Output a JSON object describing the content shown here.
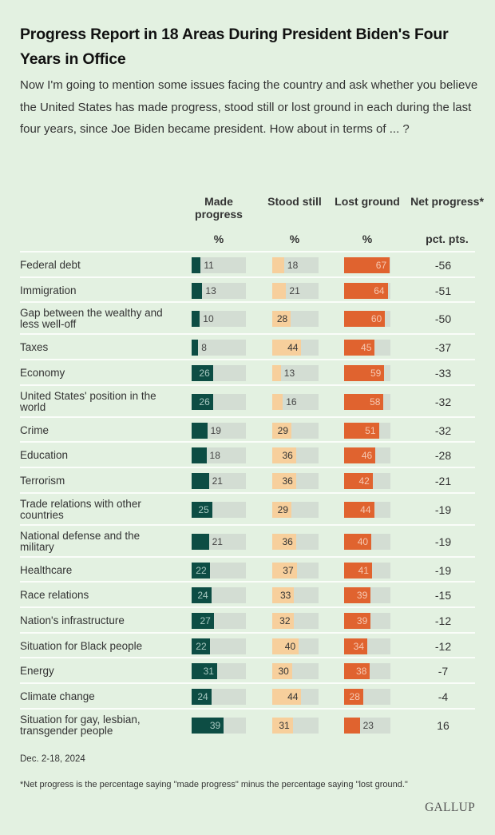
{
  "header": {
    "title": "Progress Report in 18 Areas During President Biden's Four Years in Office",
    "subtitle": "Now I'm going to mention some issues facing the country and ask whether you believe the United States has made progress, stood still or lost ground in each during the last four years, since Joe Biden became president. How about in terms of ... ?"
  },
  "columns": [
    {
      "head": "Made progress",
      "unit": "%"
    },
    {
      "head": "Stood still",
      "unit": "%"
    },
    {
      "head": "Lost ground",
      "unit": "%"
    },
    {
      "head": "Net progress*",
      "unit": "pct. pts."
    }
  ],
  "colors": {
    "made_progress": "#0d4d44",
    "stood_still": "#f7cf9c",
    "lost_ground": "#e0632f",
    "track": "#d3ddd3",
    "background": "#e3f1e1"
  },
  "chart_data": {
    "type": "table",
    "title": "Progress Report in 18 Areas During President Biden's Four Years in Office",
    "series_names": [
      "Made progress",
      "Stood still",
      "Lost ground",
      "Net progress"
    ],
    "units": [
      "%",
      "%",
      "%",
      "pct. pts."
    ],
    "rows": [
      {
        "area": "Federal debt",
        "made": 11,
        "still": 18,
        "lost": 67,
        "net": "-56"
      },
      {
        "area": "Immigration",
        "made": 13,
        "still": 21,
        "lost": 64,
        "net": "-51"
      },
      {
        "area": "Gap between the wealthy and less well-off",
        "made": 10,
        "still": 28,
        "lost": 60,
        "net": "-50"
      },
      {
        "area": "Taxes",
        "made": 8,
        "still": 44,
        "lost": 45,
        "net": "-37"
      },
      {
        "area": "Economy",
        "made": 26,
        "still": 13,
        "lost": 59,
        "net": "-33"
      },
      {
        "area": "United States' position in the world",
        "made": 26,
        "still": 16,
        "lost": 58,
        "net": "-32"
      },
      {
        "area": "Crime",
        "made": 19,
        "still": 29,
        "lost": 51,
        "net": "-32"
      },
      {
        "area": "Education",
        "made": 18,
        "still": 36,
        "lost": 46,
        "net": "-28"
      },
      {
        "area": "Terrorism",
        "made": 21,
        "still": 36,
        "lost": 42,
        "net": "-21"
      },
      {
        "area": "Trade relations with other countries",
        "made": 25,
        "still": 29,
        "lost": 44,
        "net": "-19"
      },
      {
        "area": "National defense and the military",
        "made": 21,
        "still": 36,
        "lost": 40,
        "net": "-19"
      },
      {
        "area": "Healthcare",
        "made": 22,
        "still": 37,
        "lost": 41,
        "net": "-19"
      },
      {
        "area": "Race relations",
        "made": 24,
        "still": 33,
        "lost": 39,
        "net": "-15"
      },
      {
        "area": "Nation's infrastructure",
        "made": 27,
        "still": 32,
        "lost": 39,
        "net": "-12"
      },
      {
        "area": "Situation for Black people",
        "made": 22,
        "still": 40,
        "lost": 34,
        "net": "-12"
      },
      {
        "area": "Energy",
        "made": 31,
        "still": 30,
        "lost": 38,
        "net": "-7"
      },
      {
        "area": "Climate change",
        "made": 24,
        "still": 44,
        "lost": 28,
        "net": "-4"
      },
      {
        "area": "Situation for gay, lesbian, transgender people",
        "made": 39,
        "still": 31,
        "lost": 23,
        "net": "16"
      }
    ]
  },
  "footer": {
    "date": "Dec. 2-18, 2024",
    "note": "*Net progress is the percentage saying \"made progress\" minus the percentage saying \"lost ground.\"",
    "logo": "GALLUP"
  }
}
